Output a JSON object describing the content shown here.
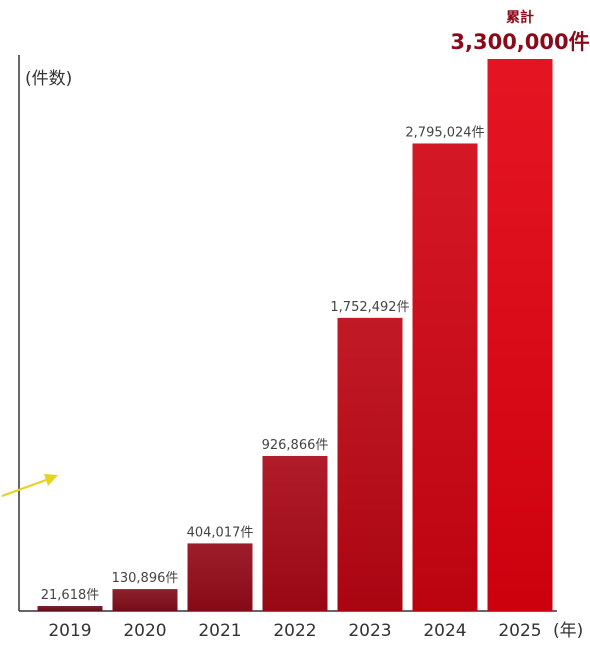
{
  "chart_data": {
    "type": "bar",
    "categories": [
      "2019",
      "2020",
      "2021",
      "2022",
      "2023",
      "2024",
      "2025"
    ],
    "values": [
      21618,
      130896,
      404017,
      926866,
      1752492,
      2795024,
      3300000
    ],
    "data_labels": [
      "21,618件",
      "130,896件",
      "404,017件",
      "926,866件",
      "1,752,492件",
      "2,795,024件",
      "3,300,000件"
    ],
    "ylabel": "(件数)",
    "xlabel": "(年)",
    "ylim": [
      0,
      3300000
    ],
    "grid": false,
    "annotation": {
      "label": "累計",
      "value": "3,300,000件"
    },
    "colors": {
      "bar_start": "#6e0f1c",
      "bar_end": "#e3000f",
      "accent_text": "#8b0a1a",
      "arrow": "#e6d320",
      "axis": "#333333"
    }
  }
}
